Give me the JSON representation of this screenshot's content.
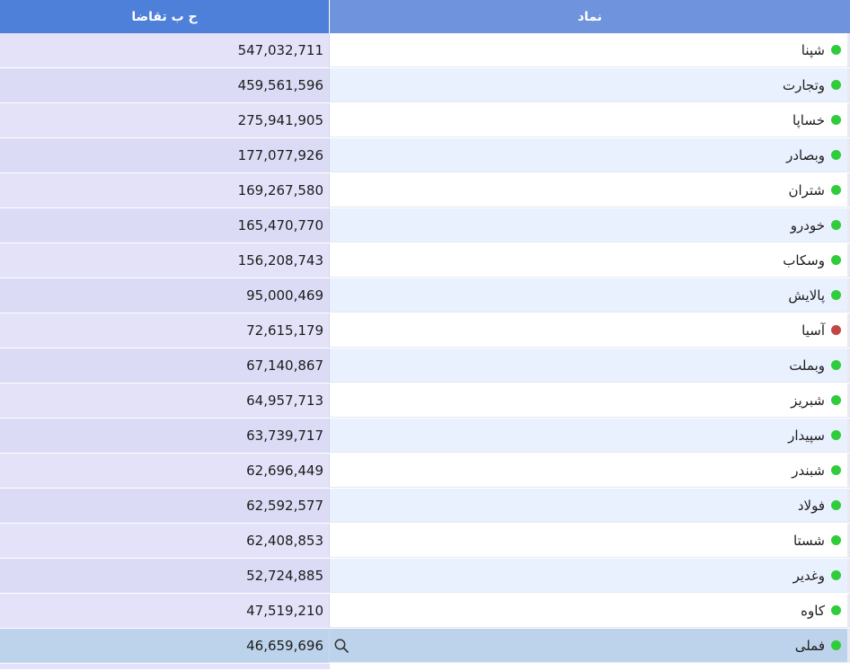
{
  "columns": {
    "value_header": "ح ب تقاضا",
    "symbol_header": "نماد"
  },
  "status_colors": {
    "green": "#2fcc3b",
    "red": "#c24646"
  },
  "rows": [
    {
      "symbol": "شپنا",
      "value": "547,032,711",
      "status": "green"
    },
    {
      "symbol": "وتجارت",
      "value": "459,561,596",
      "status": "green"
    },
    {
      "symbol": "خساپا",
      "value": "275,941,905",
      "status": "green"
    },
    {
      "symbol": "وبصادر",
      "value": "177,077,926",
      "status": "green"
    },
    {
      "symbol": "شتران",
      "value": "169,267,580",
      "status": "green"
    },
    {
      "symbol": "خودرو",
      "value": "165,470,770",
      "status": "green"
    },
    {
      "symbol": "وسکاب",
      "value": "156,208,743",
      "status": "green"
    },
    {
      "symbol": "پالایش",
      "value": "95,000,469",
      "status": "green"
    },
    {
      "symbol": "آسیا",
      "value": "72,615,179",
      "status": "red"
    },
    {
      "symbol": "وبملت",
      "value": "67,140,867",
      "status": "green"
    },
    {
      "symbol": "شبریز",
      "value": "64,957,713",
      "status": "green"
    },
    {
      "symbol": "سپیدار",
      "value": "63,739,717",
      "status": "green"
    },
    {
      "symbol": "شبندر",
      "value": "62,696,449",
      "status": "green"
    },
    {
      "symbol": "فولاد",
      "value": "62,592,577",
      "status": "green"
    },
    {
      "symbol": "شستا",
      "value": "62,408,853",
      "status": "green"
    },
    {
      "symbol": "وغدیر",
      "value": "52,724,885",
      "status": "green"
    },
    {
      "symbol": "کاوه",
      "value": "47,519,210",
      "status": "green"
    },
    {
      "symbol": "فملی",
      "value": "46,659,696",
      "status": "green",
      "selected": true
    }
  ],
  "selected_row_icon": "search-icon"
}
